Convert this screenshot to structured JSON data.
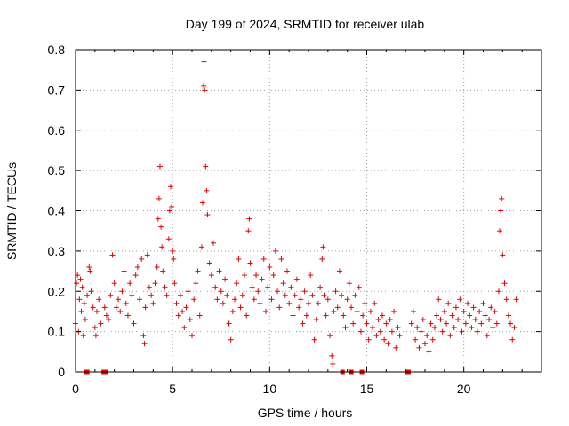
{
  "chart_data": {
    "type": "scatter",
    "title": "Day 199 of 2024, SRMTID for receiver ulab",
    "xlabel": "GPS time / hours",
    "ylabel": "SRMTID / TECUs",
    "xlim": [
      0,
      24
    ],
    "ylim": [
      0,
      0.8
    ],
    "xticks": [
      0,
      5,
      10,
      15,
      20
    ],
    "xtick_labels": [
      "0",
      "5",
      "10",
      "15",
      "20"
    ],
    "yticks": [
      0,
      0.1,
      0.2,
      0.3,
      0.4,
      0.5,
      0.6,
      0.7,
      0.8
    ],
    "ytick_labels": [
      "0",
      "0.1",
      "0.2",
      "0.3",
      "0.4",
      "0.5",
      "0.6",
      "0.7",
      "0.8"
    ],
    "grid": true,
    "marker": "+",
    "color": "#e60000",
    "series": [
      {
        "name": "SRMTID",
        "points": [
          [
            0.0,
            0.12
          ],
          [
            0.05,
            0.22
          ],
          [
            0.1,
            0.24
          ],
          [
            0.15,
            0.1
          ],
          [
            0.2,
            0.18
          ],
          [
            0.25,
            0.23
          ],
          [
            0.3,
            0.15
          ],
          [
            0.35,
            0.21
          ],
          [
            0.4,
            0.09
          ],
          [
            0.45,
            0.17
          ],
          [
            0.5,
            0.13
          ],
          [
            0.6,
            0.19
          ],
          [
            0.7,
            0.26
          ],
          [
            0.75,
            0.25
          ],
          [
            0.8,
            0.2
          ],
          [
            0.9,
            0.16
          ],
          [
            1.0,
            0.11
          ],
          [
            1.05,
            0.09
          ],
          [
            1.1,
            0.15
          ],
          [
            1.2,
            0.18
          ],
          [
            1.3,
            0.12
          ],
          [
            1.5,
            0.16
          ],
          [
            1.6,
            0.14
          ],
          [
            1.7,
            0.13
          ],
          [
            1.8,
            0.19
          ],
          [
            1.9,
            0.29
          ],
          [
            2.0,
            0.22
          ],
          [
            2.1,
            0.16
          ],
          [
            2.2,
            0.18
          ],
          [
            2.3,
            0.15
          ],
          [
            2.4,
            0.2
          ],
          [
            2.5,
            0.25
          ],
          [
            2.6,
            0.17
          ],
          [
            2.7,
            0.14
          ],
          [
            2.8,
            0.22
          ],
          [
            2.9,
            0.19
          ],
          [
            3.0,
            0.12
          ],
          [
            3.1,
            0.24
          ],
          [
            3.2,
            0.26
          ],
          [
            3.3,
            0.18
          ],
          [
            3.4,
            0.28
          ],
          [
            3.5,
            0.09
          ],
          [
            3.55,
            0.07
          ],
          [
            3.6,
            0.16
          ],
          [
            3.7,
            0.29
          ],
          [
            3.8,
            0.21
          ],
          [
            3.9,
            0.19
          ],
          [
            4.0,
            0.17
          ],
          [
            4.1,
            0.22
          ],
          [
            4.2,
            0.26
          ],
          [
            4.25,
            0.38
          ],
          [
            4.3,
            0.43
          ],
          [
            4.35,
            0.51
          ],
          [
            4.4,
            0.36
          ],
          [
            4.45,
            0.31
          ],
          [
            4.5,
            0.25
          ],
          [
            4.6,
            0.21
          ],
          [
            4.7,
            0.19
          ],
          [
            4.8,
            0.33
          ],
          [
            4.85,
            0.4
          ],
          [
            4.9,
            0.46
          ],
          [
            4.95,
            0.41
          ],
          [
            5.0,
            0.3
          ],
          [
            5.05,
            0.28
          ],
          [
            5.1,
            0.22
          ],
          [
            5.2,
            0.17
          ],
          [
            5.3,
            0.14
          ],
          [
            5.4,
            0.19
          ],
          [
            5.5,
            0.15
          ],
          [
            5.6,
            0.11
          ],
          [
            5.7,
            0.16
          ],
          [
            5.8,
            0.2
          ],
          [
            5.9,
            0.13
          ],
          [
            6.0,
            0.09
          ],
          [
            6.1,
            0.18
          ],
          [
            6.2,
            0.22
          ],
          [
            6.3,
            0.25
          ],
          [
            6.4,
            0.14
          ],
          [
            6.5,
            0.31
          ],
          [
            6.55,
            0.42
          ],
          [
            6.6,
            0.71
          ],
          [
            6.62,
            0.77
          ],
          [
            6.65,
            0.7
          ],
          [
            6.7,
            0.51
          ],
          [
            6.75,
            0.45
          ],
          [
            6.8,
            0.39
          ],
          [
            6.9,
            0.27
          ],
          [
            7.0,
            0.24
          ],
          [
            7.1,
            0.32
          ],
          [
            7.2,
            0.21
          ],
          [
            7.3,
            0.18
          ],
          [
            7.4,
            0.25
          ],
          [
            7.5,
            0.2
          ],
          [
            7.6,
            0.17
          ],
          [
            7.7,
            0.23
          ],
          [
            7.8,
            0.19
          ],
          [
            7.9,
            0.12
          ],
          [
            8.0,
            0.08
          ],
          [
            8.1,
            0.15
          ],
          [
            8.2,
            0.18
          ],
          [
            8.3,
            0.22
          ],
          [
            8.4,
            0.28
          ],
          [
            8.5,
            0.16
          ],
          [
            8.6,
            0.19
          ],
          [
            8.7,
            0.24
          ],
          [
            8.8,
            0.14
          ],
          [
            8.9,
            0.35
          ],
          [
            8.95,
            0.38
          ],
          [
            9.0,
            0.27
          ],
          [
            9.1,
            0.21
          ],
          [
            9.2,
            0.18
          ],
          [
            9.3,
            0.24
          ],
          [
            9.4,
            0.2
          ],
          [
            9.5,
            0.17
          ],
          [
            9.6,
            0.23
          ],
          [
            9.7,
            0.28
          ],
          [
            9.8,
            0.15
          ],
          [
            9.9,
            0.21
          ],
          [
            10.0,
            0.26
          ],
          [
            10.1,
            0.18
          ],
          [
            10.2,
            0.24
          ],
          [
            10.3,
            0.3
          ],
          [
            10.4,
            0.2
          ],
          [
            10.5,
            0.16
          ],
          [
            10.6,
            0.28
          ],
          [
            10.7,
            0.22
          ],
          [
            10.8,
            0.19
          ],
          [
            10.9,
            0.25
          ],
          [
            11.0,
            0.17
          ],
          [
            11.1,
            0.21
          ],
          [
            11.2,
            0.14
          ],
          [
            11.3,
            0.19
          ],
          [
            11.4,
            0.23
          ],
          [
            11.5,
            0.16
          ],
          [
            11.6,
            0.18
          ],
          [
            11.7,
            0.12
          ],
          [
            11.8,
            0.2
          ],
          [
            11.9,
            0.14
          ],
          [
            12.0,
            0.17
          ],
          [
            12.1,
            0.24
          ],
          [
            12.2,
            0.19
          ],
          [
            12.3,
            0.08
          ],
          [
            12.4,
            0.13
          ],
          [
            12.5,
            0.17
          ],
          [
            12.6,
            0.21
          ],
          [
            12.7,
            0.28
          ],
          [
            12.75,
            0.31
          ],
          [
            12.8,
            0.19
          ],
          [
            12.9,
            0.14
          ],
          [
            13.0,
            0.18
          ],
          [
            13.1,
            0.09
          ],
          [
            13.2,
            0.04
          ],
          [
            13.25,
            0.02
          ],
          [
            13.3,
            0.15
          ],
          [
            13.4,
            0.2
          ],
          [
            13.5,
            0.16
          ],
          [
            13.6,
            0.25
          ],
          [
            13.7,
            0.19
          ],
          [
            13.8,
            0.14
          ],
          [
            13.9,
            0.11
          ],
          [
            14.0,
            0.18
          ],
          [
            14.1,
            0.22
          ],
          [
            14.2,
            0.16
          ],
          [
            14.3,
            0.12
          ],
          [
            14.4,
            0.19
          ],
          [
            14.5,
            0.15
          ],
          [
            14.6,
            0.21
          ],
          [
            14.7,
            0.1
          ],
          [
            14.8,
            0.14
          ],
          [
            14.9,
            0.17
          ],
          [
            15.0,
            0.12
          ],
          [
            15.1,
            0.08
          ],
          [
            15.2,
            0.15
          ],
          [
            15.3,
            0.11
          ],
          [
            15.4,
            0.17
          ],
          [
            15.5,
            0.09
          ],
          [
            15.6,
            0.13
          ],
          [
            15.7,
            0.1
          ],
          [
            15.8,
            0.14
          ],
          [
            15.9,
            0.08
          ],
          [
            16.0,
            0.12
          ],
          [
            16.1,
            0.07
          ],
          [
            16.2,
            0.13
          ],
          [
            16.3,
            0.1
          ],
          [
            16.4,
            0.15
          ],
          [
            16.5,
            0.06
          ],
          [
            16.6,
            0.11
          ],
          [
            16.7,
            0.09
          ],
          [
            17.3,
            0.12
          ],
          [
            17.4,
            0.15
          ],
          [
            17.5,
            0.08
          ],
          [
            17.6,
            0.11
          ],
          [
            17.7,
            0.06
          ],
          [
            17.8,
            0.1
          ],
          [
            17.9,
            0.13
          ],
          [
            18.0,
            0.07
          ],
          [
            18.1,
            0.09
          ],
          [
            18.2,
            0.05
          ],
          [
            18.3,
            0.12
          ],
          [
            18.4,
            0.08
          ],
          [
            18.5,
            0.11
          ],
          [
            18.6,
            0.14
          ],
          [
            18.7,
            0.18
          ],
          [
            18.8,
            0.13
          ],
          [
            18.9,
            0.1
          ],
          [
            19.0,
            0.15
          ],
          [
            19.1,
            0.12
          ],
          [
            19.2,
            0.17
          ],
          [
            19.3,
            0.09
          ],
          [
            19.4,
            0.14
          ],
          [
            19.5,
            0.11
          ],
          [
            19.6,
            0.16
          ],
          [
            19.7,
            0.13
          ],
          [
            19.8,
            0.18
          ],
          [
            19.9,
            0.1
          ],
          [
            20.0,
            0.15
          ],
          [
            20.1,
            0.12
          ],
          [
            20.2,
            0.17
          ],
          [
            20.3,
            0.14
          ],
          [
            20.4,
            0.11
          ],
          [
            20.5,
            0.16
          ],
          [
            20.6,
            0.13
          ],
          [
            20.7,
            0.1
          ],
          [
            20.8,
            0.15
          ],
          [
            20.9,
            0.12
          ],
          [
            21.0,
            0.17
          ],
          [
            21.1,
            0.14
          ],
          [
            21.2,
            0.09
          ],
          [
            21.3,
            0.13
          ],
          [
            21.4,
            0.16
          ],
          [
            21.5,
            0.11
          ],
          [
            21.6,
            0.15
          ],
          [
            21.7,
            0.12
          ],
          [
            21.8,
            0.2
          ],
          [
            21.85,
            0.35
          ],
          [
            21.9,
            0.4
          ],
          [
            21.95,
            0.43
          ],
          [
            22.0,
            0.29
          ],
          [
            22.1,
            0.22
          ],
          [
            22.2,
            0.18
          ],
          [
            22.3,
            0.14
          ],
          [
            22.4,
            0.12
          ],
          [
            22.5,
            0.08
          ],
          [
            22.6,
            0.11
          ],
          [
            22.7,
            0.18
          ]
        ]
      }
    ],
    "zero_markers_x": [
      0.55,
      0.6,
      1.45,
      1.55,
      13.75,
      14.2,
      14.75,
      17.1,
      17.15
    ]
  }
}
